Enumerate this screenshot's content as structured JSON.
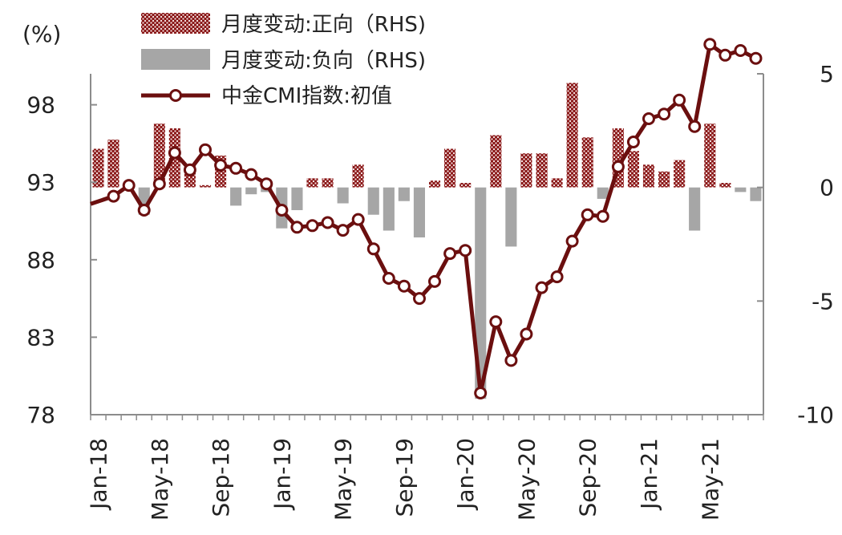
{
  "chart_data": {
    "type": "bar+line",
    "title": "",
    "ylabel_left": "(%)",
    "ylabel_right": "",
    "left_axis": {
      "ylim": [
        78,
        100
      ],
      "ticks": [
        78,
        83,
        88,
        93,
        98
      ]
    },
    "right_axis": {
      "ylim": [
        -10,
        5
      ],
      "ticks": [
        -10,
        -5,
        0,
        5
      ]
    },
    "x_tick_labels": [
      "Jan-18",
      "May-18",
      "Sep-18",
      "Jan-19",
      "May-19",
      "Sep-19",
      "Jan-20",
      "May-20",
      "Sep-20",
      "Jan-21",
      "May-21"
    ],
    "legend": [
      {
        "label": "月度变动:正向（RHS)",
        "type": "bar-positive",
        "color": "#8b1a1a"
      },
      {
        "label": "月度变动:负向（RHS)",
        "type": "bar-negative",
        "color": "#a6a6a6"
      },
      {
        "label": "中金CMI指数:初值",
        "type": "line",
        "color": "#6b0f0f"
      }
    ],
    "months": [
      "2018-01",
      "2018-02",
      "2018-03",
      "2018-04",
      "2018-05",
      "2018-06",
      "2018-07",
      "2018-08",
      "2018-09",
      "2018-10",
      "2018-11",
      "2018-12",
      "2019-01",
      "2019-02",
      "2019-03",
      "2019-04",
      "2019-05",
      "2019-06",
      "2019-07",
      "2019-08",
      "2019-09",
      "2019-10",
      "2019-11",
      "2019-12",
      "2020-01",
      "2020-02",
      "2020-03",
      "2020-04",
      "2020-05",
      "2020-06",
      "2020-07",
      "2020-08",
      "2020-09",
      "2020-10",
      "2020-11",
      "2020-12",
      "2021-01",
      "2021-02",
      "2021-03",
      "2021-04",
      "2021-05",
      "2021-06",
      "2021-07",
      "2021-08"
    ],
    "cmi_index": [
      91.6,
      92.1,
      92.8,
      91.2,
      92.9,
      94.9,
      93.8,
      95.1,
      94.1,
      93.9,
      93.5,
      92.9,
      91.2,
      90.1,
      90.2,
      90.4,
      89.9,
      90.6,
      88.7,
      86.8,
      86.3,
      85.5,
      86.6,
      88.4,
      88.6,
      79.4,
      84.0,
      81.5,
      83.2,
      86.2,
      86.9,
      89.2,
      90.9,
      90.8,
      94.0,
      95.6,
      97.1,
      97.4,
      98.3,
      96.6,
      101.9,
      101.2,
      101.5,
      101.0
    ],
    "monthly_change": [
      1.7,
      2.1,
      0.0,
      -1.2,
      2.8,
      2.6,
      1.0,
      0.1,
      1.4,
      -0.8,
      -0.3,
      -0.2,
      -1.8,
      -1.0,
      0.4,
      0.4,
      -0.7,
      1.0,
      -1.2,
      -1.9,
      -0.6,
      -2.2,
      0.3,
      1.7,
      0.2,
      -9.3,
      2.3,
      -2.6,
      1.5,
      1.5,
      0.4,
      4.6,
      2.2,
      -0.5,
      2.6,
      1.6,
      1.0,
      0.7,
      1.2,
      -1.9,
      2.8,
      0.2,
      -0.2,
      -0.6
    ]
  }
}
